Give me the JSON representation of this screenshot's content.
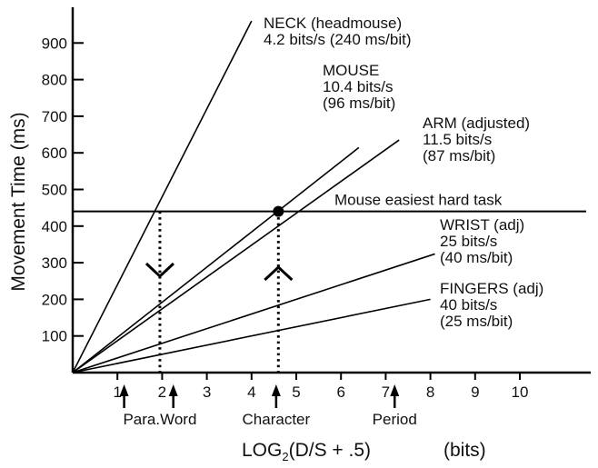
{
  "chart_data": {
    "type": "line",
    "title": "",
    "xlabel_main": "LOG",
    "xlabel_sub": "2",
    "xlabel_rest": "(D/S + .5)",
    "xlabel_unit": "(bits)",
    "ylabel": "Movement Time   (ms)",
    "xlim": [
      0,
      11
    ],
    "ylim": [
      0,
      950
    ],
    "x_ticks": [
      "1",
      "2",
      "3",
      "4",
      "5",
      "6",
      "7",
      "8",
      "9",
      "10"
    ],
    "y_ticks": [
      "100",
      "200",
      "300",
      "400",
      "500",
      "600",
      "700",
      "800",
      "900"
    ],
    "series": [
      {
        "name": "NECK (headmouse)",
        "slope": 240,
        "x_end": 4.0
      },
      {
        "name": "MOUSE",
        "slope": 96,
        "x_end": 6.4
      },
      {
        "name": "ARM (adjusted)",
        "slope": 87,
        "x_end": 7.3
      },
      {
        "name": "WRIST (adj)",
        "slope": 40,
        "x_end": 8.1
      },
      {
        "name": "FINGERS (adj)",
        "slope": 25,
        "x_end": 8.0
      }
    ],
    "series_labels": [
      {
        "lines": [
          "NECK (headmouse)",
          "4.2 bits/s  (240 ms/bit)"
        ]
      },
      {
        "lines": [
          "MOUSE",
          "10.4 bits/s",
          "(96 ms/bit)"
        ]
      },
      {
        "lines": [
          "ARM  (adjusted)",
          "11.5 bits/s",
          "(87 ms/bit)"
        ]
      },
      {
        "lines": [
          "WRIST (adj)",
          "25 bits/s",
          "(40 ms/bit)"
        ]
      },
      {
        "lines": [
          "FINGERS  (adj)",
          "40 bits/s",
          "(25 ms/bit)"
        ]
      }
    ],
    "reference_line": {
      "label": "Mouse easiest hard task",
      "y": 440
    },
    "marker_point": {
      "x": 4.6,
      "y": 440
    },
    "vertical_guides": [
      {
        "x": 1.95
      },
      {
        "x": 4.6
      }
    ],
    "task_markers": [
      {
        "x": 1.15
      },
      {
        "x": 2.25
      },
      {
        "x": 4.55
      },
      {
        "x": 7.2
      }
    ],
    "task_labels": [
      {
        "label": "Para.Word",
        "x": 1.95
      },
      {
        "label": "Character",
        "x": 4.55
      },
      {
        "label": "Period",
        "x": 7.2
      }
    ]
  }
}
